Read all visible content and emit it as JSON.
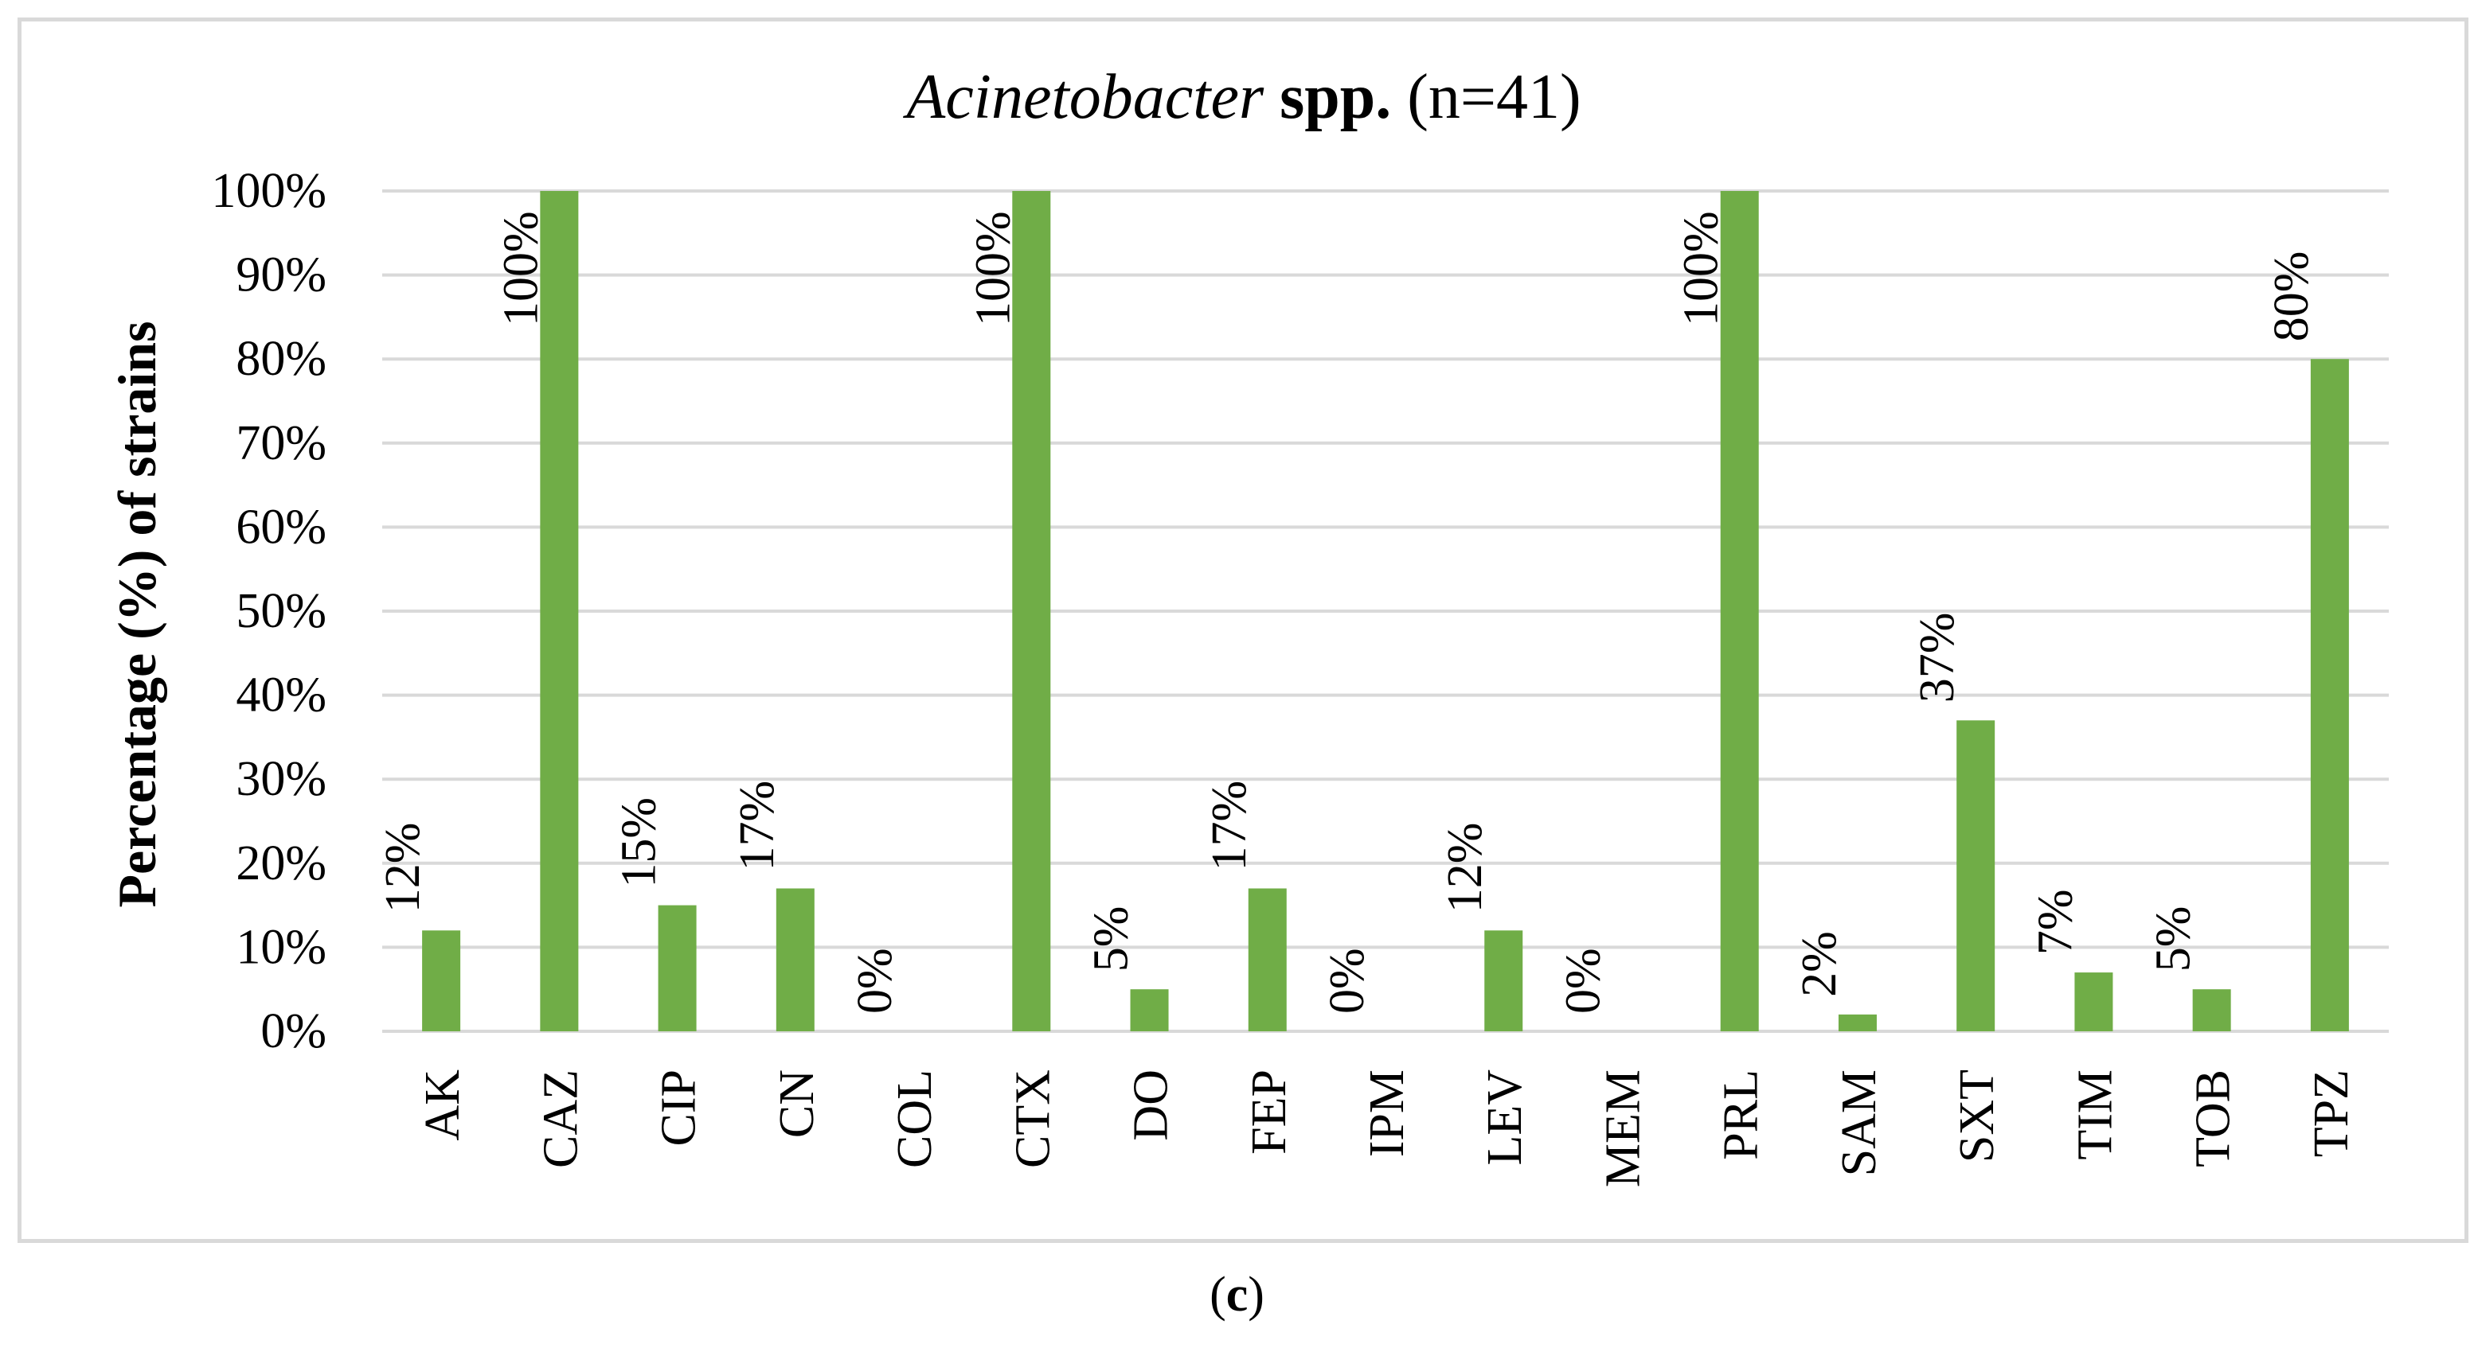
{
  "chart_data": {
    "type": "bar",
    "title": {
      "italic": "Acinetobacter",
      "bold": "spp.",
      "plain": "(n=41)"
    },
    "xlabel": "",
    "ylabel": "Percentage (%) of strains",
    "ylim": [
      0,
      100
    ],
    "yticks": [
      "0%",
      "10%",
      "20%",
      "30%",
      "40%",
      "50%",
      "60%",
      "70%",
      "80%",
      "90%",
      "100%"
    ],
    "grid": true,
    "categories": [
      "AK",
      "CAZ",
      "CIP",
      "CN",
      "COL",
      "CTX",
      "DO",
      "FEP",
      "IPM",
      "LEV",
      "MEM",
      "PRL",
      "SAM",
      "SXT",
      "TIM",
      "TOB",
      "TPZ"
    ],
    "values": [
      12,
      100,
      15,
      17,
      0,
      100,
      5,
      17,
      0,
      12,
      0,
      100,
      2,
      37,
      7,
      5,
      80
    ],
    "data_labels": [
      "12%",
      "100%",
      "15%",
      "17%",
      "0%",
      "100%",
      "5%",
      "17%",
      "0%",
      "12%",
      "0%",
      "100%",
      "2%",
      "37%",
      "7%",
      "5%",
      "80%"
    ],
    "bar_color": "#70ad47",
    "gridline_color": "#d9d9d9"
  },
  "caption": {
    "open": "(",
    "letter": "c",
    "close": ")"
  }
}
